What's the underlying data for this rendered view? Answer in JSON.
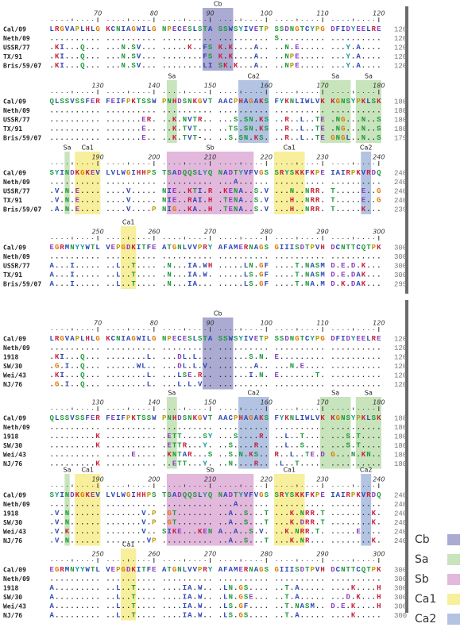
{
  "panels": [
    {
      "blocks": [
        {
          "sites": [
            "Cb"
          ],
          "ruler": [
            70,
            80,
            90,
            100,
            110,
            120
          ],
          "rows": [
            {
              "name": "Cal/09",
              "sequence": "LRGVAPLHLG KCNIAGWILG NPECESLSTA SSWSYIVETP SSDNGTCYPG DFIDYEELRE",
              "end": 120
            },
            {
              "name": "Neth/09",
              "sequence": ".......... .......... .......... .......... S......... ..........",
              "end": 120
            },
            {
              "name": "USSR/77",
              "sequence": ".KI...Q... ...N.SV... .....K..FS K.K....A.. ..N.E..... ...Y.A....",
              "end": 120
            },
            {
              "name": "TX/91",
              "sequence": ".KI...Q... ...N.SV... ........FS K.K....A.. ..NPE..... ...Y.A....",
              "end": 120
            },
            {
              "name": "Bris/59/07",
              "sequence": ".KI...Q... ...N.SV... ........LI SK.K...A.. ..NPE..... ...Y.A....",
              "end": 120
            }
          ]
        },
        {
          "sites": [
            "Sa",
            "Ca2",
            "Sa",
            "Sa"
          ],
          "ruler": [
            130,
            140,
            150,
            160,
            170,
            180
          ],
          "rows": [
            {
              "name": "Cal/09",
              "sequence": "QLSSVSSFER FEIFPKTSSW PNHDSNKGVT AACPHAGAKS FYKNLIWLVK KGNSYPKLSK",
              "end": 180
            },
            {
              "name": "Neth/09",
              "sequence": ".......... .......... .......... .......... .......... ..........",
              "end": 180
            },
            {
              "name": "USSR/77",
              "sequence": ".......... .......ER. ..K.NVTR.. ...S.SN.KS ..R..L..TE .NG...N..S",
              "end": 180
            },
            {
              "name": "TX/91",
              "sequence": ".......... .......E.. ..K.TVT... ..TS.SN.KS ..R..L..TE .NG...N..S",
              "end": 180
            },
            {
              "name": "Bris/59/07",
              "sequence": ".......... .......E.. ..K.TVT-.. ..S.SN.KS. ..R..L..TE GNGL..N..S",
              "end": 179
            }
          ]
        },
        {
          "sites": [
            "Sa",
            "Ca1",
            "Sb",
            "Ca1",
            "Ca2"
          ],
          "ruler": [
            190,
            200,
            210,
            220,
            230,
            240
          ],
          "rows": [
            {
              "name": "Cal/09",
              "sequence": "SYINDKGKEV LVLWGIHHPS TSADQQSLYQ NADTYVFVGS SRYSKKFKPE IAIRPKVRDQ",
              "end": 240
            },
            {
              "name": "Neth/09",
              "sequence": ".......... .......... .......... ...A...... .......... ..........",
              "end": 240
            },
            {
              "name": "USSR/77",
              "sequence": ".V.N.E.... ....V..... NIE..KTI.R .KENA..S.V ...N..NRR. T.....E..G",
              "end": 240
            },
            {
              "name": "TX/91",
              "sequence": ".V.N.E.... ....V..... NIE..RAI.H .TENA..S.V ...H..NRR. T.....E..G",
              "end": 240
            },
            {
              "name": "Bris/59/07",
              "sequence": ".A.N.E.... ....V....P NIG..KA..H .TENA..S.V ...H..NRR. T.....K...",
              "end": 239
            }
          ]
        },
        {
          "sites": [
            "Ca1"
          ],
          "ruler": [
            250,
            260,
            270,
            280,
            290,
            300
          ],
          "rows": [
            {
              "name": "Cal/09",
              "sequence": "EGRMNYYWTL VEPGDKITFE ATGNLVVPRY AFAMERNAGS GIIISDTPVH DCNTTCQTPK",
              "end": 300
            },
            {
              "name": "Neth/09",
              "sequence": ".......... .......... .......... .......... .......... ..........",
              "end": 300
            },
            {
              "name": "USSR/77",
              "sequence": "A...I..... ..L..T.... .N...IA.WH .....LN.GF ....T.NASM D.E.D.K...",
              "end": 300
            },
            {
              "name": "TX/91",
              "sequence": "A...I..... ..L..T.... .N...IA.W. .....LS.GF ....T.NASM D.E.DAK...",
              "end": 300
            },
            {
              "name": "Bris/59/07",
              "sequence": "A...I..... ..L..T.... .N...IA... .....LS.GF ....T.NA.M D.K.DAK...",
              "end": 299
            }
          ]
        }
      ]
    },
    {
      "blocks": [
        {
          "sites": [
            "Cb"
          ],
          "ruler": [
            70,
            80,
            90,
            100,
            110,
            120
          ],
          "rows": [
            {
              "name": "Cal/09",
              "sequence": "LRGVAPLHLG KCNIAGWILG NPECESLSTA SSWSYIVETP SSDNGTCYPG DFIDYEELRE",
              "end": 120
            },
            {
              "name": "Neth/09",
              "sequence": ".......... .......... .......... .......... .......... ..........",
              "end": 120
            },
            {
              "name": "1918",
              "sequence": ".KI...Q... ........L. ...DL.L... ......S.N. E......... ..........",
              "end": 120
            },
            {
              "name": "SW/30",
              "sequence": ".G.I..Q... ......WL.. ...DL.L.V. .......A.. ...N.E.... ..........",
              "end": 120
            },
            {
              "name": "Wei/43",
              "sequence": ".KI...Q... ........L. ...LSE.R.. ......I.N. E.......T. ..........",
              "end": 120
            },
            {
              "name": "NJ/76",
              "sequence": ".G.I..Q... ........L. ...L.L.V.. .......... .......... ..........",
              "end": 120
            }
          ]
        },
        {
          "sites": [
            "Sa",
            "Ca2",
            "Sa",
            "Sa"
          ],
          "ruler": [
            130,
            140,
            150,
            160,
            170,
            180
          ],
          "rows": [
            {
              "name": "Cal/09",
              "sequence": "QLSSVSSFER FEIFPKTSSW PNHDSNKGVT AACPHAGAKS FYKNLIWLVK KGNSYPKLSK",
              "end": 180
            },
            {
              "name": "Neth/09",
              "sequence": ".......... .......... .......... .......... .......... ..........",
              "end": 180
            },
            {
              "name": "1918",
              "sequence": ".........K .......... .ETT....SY ...S....R. ..L..T.... ...S.T....",
              "end": 180
            },
            {
              "name": "SW/30",
              "sequence": ".........K .......... .ETTR...Y. ..S....R.. ..L..S.... ...S.T....",
              "end": 180
            },
            {
              "name": "Wei/43",
              "sequence": ".......... .....E.... .KNTAR...S ..S.N.KS.. R..L..TE.D G...N.KN..",
              "end": 180
            },
            {
              "name": "NJ/76",
              "sequence": ".........K .......... ..ETT...Y. ..N....R.. .L..T..... ..........",
              "end": 180
            }
          ]
        },
        {
          "sites": [
            "Sa",
            "Ca1",
            "Sb",
            "Ca1",
            "Ca2"
          ],
          "ruler": [
            190,
            200,
            210,
            220,
            230,
            240
          ],
          "rows": [
            {
              "name": "Cal/09",
              "sequence": "SYINDKGKEV LVLWGIHHPS TSADQQSLYQ NADTYVFVGS SRYSKKFKPE IAIRPKVRDQ",
              "end": 240
            },
            {
              "name": "Neth/09",
              "sequence": ".......... .......... .......... ...A...... .......... ..........",
              "end": 240
            },
            {
              "name": "1918",
              "sequence": ".V.N...... .......V.P .GT....... ..A..S...T ...K.NRR.T ........K.",
              "end": 240
            },
            {
              "name": "SW/30",
              "sequence": ".V.N...... .......V.P .GT....... ..A..S...T ...K.DRR.T ........K.",
              "end": 240
            },
            {
              "name": "Wei/43",
              "sequence": ".V.K...... .......V.. SIKE...KEN A..A..S.V. ..K.NRR.T. .....E....",
              "end": 240
            },
            {
              "name": "NJ/76",
              "sequence": ".V.N...... ........VP .......... ..A..S...T ...K.NR... ........K.",
              "end": 240
            }
          ]
        },
        {
          "sites": [
            "Ca1"
          ],
          "ruler": [
            250,
            260,
            270,
            280,
            290,
            300
          ],
          "rows": [
            {
              "name": "Cal/09",
              "sequence": "EGRMNYYWTL VEPGDKITFE ATGNLVVPRY AFAMERNAGS GIIISDTPVH DCNTTCQTPK",
              "end": 300
            },
            {
              "name": "Neth/09",
              "sequence": ".......... .......... .......... .......... .......... ..........",
              "end": 300
            },
            {
              "name": "1918",
              "sequence": "A......... ..L..T.... ....IA.W.. .LN.GS.... ..T.A..... ....K....H",
              "end": 300
            },
            {
              "name": "SW/30",
              "sequence": "A......... ..L..T.... ....IA.W.. .LN.GSE... ..T.A..... ...D.K...H",
              "end": 300
            },
            {
              "name": "Wei/43",
              "sequence": "A......... ..L..T.... ....IA.W.. .LS.GF.... ..T.NASM.. D.E.K....H",
              "end": 300
            },
            {
              "name": "NJ/76",
              "sequence": "A......... ..L..T.... ....IA.W.. .LS.GS.... ..T.A..... ....K.....",
              "end": 300
            }
          ]
        }
      ]
    }
  ],
  "legend": [
    {
      "label": "Cb",
      "color": "#aaaad2"
    },
    {
      "label": "Sa",
      "color": "#c8e4bc"
    },
    {
      "label": "Sb",
      "color": "#e2b8dc"
    },
    {
      "label": "Ca1",
      "color": "#f7ef9c"
    },
    {
      "label": "Ca2",
      "color": "#b2c4e2"
    }
  ]
}
